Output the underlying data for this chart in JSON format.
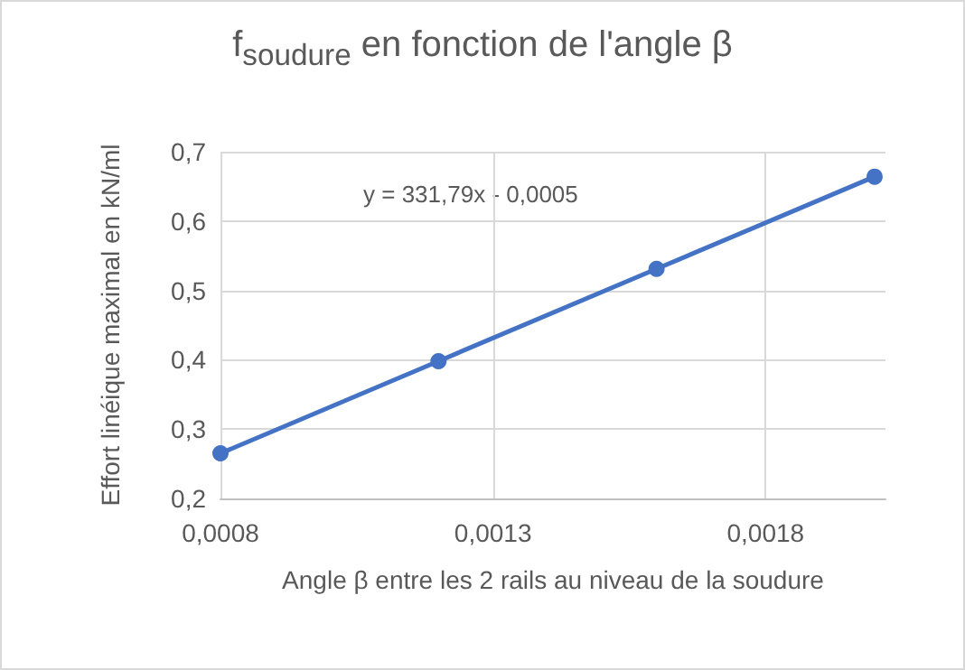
{
  "chart_data": {
    "type": "line",
    "title": "f$_{soudure}$ en fonction de l'angle β",
    "xlabel": "Angle β entre les 2 rails au niveau de la soudure",
    "ylabel": "Effort linéique maximal en kN/ml",
    "x": [
      0.0008,
      0.0012,
      0.0016,
      0.002
    ],
    "series": [
      {
        "color": "#4472c4",
        "values": [
          0.265,
          0.398,
          0.531,
          0.664
        ]
      }
    ],
    "xlim": [
      0.0008,
      0.00202
    ],
    "xticks": [
      {
        "value": 0.0008,
        "label": "0,0008"
      },
      {
        "value": 0.0013,
        "label": "0,0013"
      },
      {
        "value": 0.0018,
        "label": "0,0018"
      }
    ],
    "ylim": [
      0.2,
      0.7
    ],
    "yticks": [
      {
        "value": 0.2,
        "label": "0,2"
      },
      {
        "value": 0.3,
        "label": "0,3"
      },
      {
        "value": 0.4,
        "label": "0,4"
      },
      {
        "value": 0.5,
        "label": "0,5"
      },
      {
        "value": 0.6,
        "label": "0,6"
      },
      {
        "value": 0.7,
        "label": "0,7"
      }
    ],
    "grid": true,
    "marker": "circle",
    "line_style": "solid",
    "annotations": [
      "y = 331,79x - 0,0005"
    ]
  }
}
